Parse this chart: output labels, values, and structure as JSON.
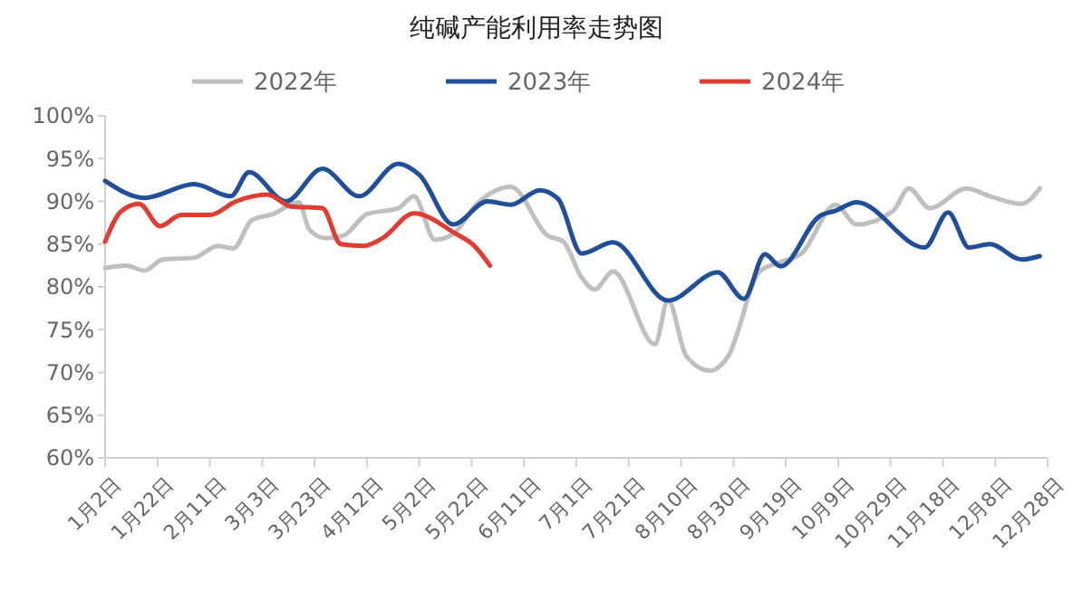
{
  "chart_data": {
    "type": "line",
    "title": "纯碱产能利用率走势图",
    "legend": "top",
    "grid": false,
    "marker": "none",
    "line_style": "solid",
    "xlim": [
      "--01-02",
      "--12-28"
    ],
    "xticks": [
      {
        "value": "--01-02",
        "label": "1月2日"
      },
      {
        "value": "--01-22",
        "label": "1月22日"
      },
      {
        "value": "--02-11",
        "label": "2月11日"
      },
      {
        "value": "--03-03",
        "label": "3月3日"
      },
      {
        "value": "--03-23",
        "label": "3月23日"
      },
      {
        "value": "--04-12",
        "label": "4月12日"
      },
      {
        "value": "--05-02",
        "label": "5月2日"
      },
      {
        "value": "--05-22",
        "label": "5月22日"
      },
      {
        "value": "--06-11",
        "label": "6月11日"
      },
      {
        "value": "--07-01",
        "label": "7月1日"
      },
      {
        "value": "--07-21",
        "label": "7月21日"
      },
      {
        "value": "--08-10",
        "label": "8月10日"
      },
      {
        "value": "--08-30",
        "label": "8月30日"
      },
      {
        "value": "--09-19",
        "label": "9月19日"
      },
      {
        "value": "--10-09",
        "label": "10月9日"
      },
      {
        "value": "--10-29",
        "label": "10月29日"
      },
      {
        "value": "--11-18",
        "label": "11月18日"
      },
      {
        "value": "--12-08",
        "label": "12月8日"
      },
      {
        "value": "--12-28",
        "label": "12月28日"
      }
    ],
    "ylim": [
      60,
      100
    ],
    "yticks": [
      {
        "value": 60,
        "label": "60%"
      },
      {
        "value": 65,
        "label": "65%"
      },
      {
        "value": 70,
        "label": "70%"
      },
      {
        "value": 75,
        "label": "75%"
      },
      {
        "value": 80,
        "label": "80%"
      },
      {
        "value": 85,
        "label": "85%"
      },
      {
        "value": 90,
        "label": "90%"
      },
      {
        "value": 95,
        "label": "95%"
      },
      {
        "value": 100,
        "label": "100%"
      }
    ],
    "series": [
      {
        "name": "2022年",
        "color": "#bfbfbf",
        "x": [
          "--01-02",
          "--01-10",
          "--01-17",
          "--01-24",
          "--02-05",
          "--02-14",
          "--02-20",
          "--02-27",
          "--03-07",
          "--03-17",
          "--03-21",
          "--03-27",
          "--04-03",
          "--04-12",
          "--04-24",
          "--04-30",
          "--05-08",
          "--05-15",
          "--05-24",
          "--06-06",
          "--06-20",
          "--06-26",
          "--07-03",
          "--07-08",
          "--07-15",
          "--07-31",
          "--08-05",
          "--08-12",
          "--08-21",
          "--08-28",
          "--09-09",
          "--09-17",
          "--09-25",
          "--10-08",
          "--10-16",
          "--10-30",
          "--11-05",
          "--11-13",
          "--11-27",
          "--12-06",
          "--12-18",
          "--12-25"
        ],
        "values": [
          82.2,
          82.5,
          81.9,
          83.2,
          83.4,
          84.8,
          84.5,
          87.8,
          88.5,
          89.9,
          86.7,
          85.7,
          86.0,
          88.5,
          89.2,
          90.6,
          85.5,
          86.2,
          89.7,
          91.7,
          86.0,
          85.3,
          81.1,
          79.7,
          81.8,
          73.3,
          78.4,
          71.9,
          70.2,
          71.9,
          81.8,
          82.9,
          83.9,
          89.6,
          87.3,
          88.9,
          91.5,
          89.2,
          91.5,
          90.6,
          89.7,
          91.5
        ]
      },
      {
        "name": "2023年",
        "color": "#1f4e9a",
        "x": [
          "--01-02",
          "--01-17",
          "--02-05",
          "--02-19",
          "--02-26",
          "--03-12",
          "--03-26",
          "--04-09",
          "--04-24",
          "--05-02",
          "--05-15",
          "--05-28",
          "--06-06",
          "--06-17",
          "--06-24",
          "--07-03",
          "--07-15",
          "--08-05",
          "--08-24",
          "--09-03",
          "--09-11",
          "--09-17",
          "--10-02",
          "--10-08",
          "--10-16",
          "--11-11",
          "--11-20",
          "--11-28",
          "--12-06",
          "--12-18",
          "--12-25"
        ],
        "values": [
          92.4,
          90.4,
          92.0,
          90.6,
          93.4,
          90.0,
          93.8,
          90.6,
          94.4,
          93.1,
          87.3,
          90.0,
          89.6,
          91.3,
          90.3,
          83.9,
          85.2,
          78.4,
          81.7,
          78.6,
          83.8,
          82.4,
          88.3,
          88.9,
          89.9,
          84.6,
          88.7,
          84.6,
          85.0,
          83.2,
          83.6
        ]
      },
      {
        "name": "2024年",
        "color": "#e03c31",
        "x": [
          "--01-02",
          "--01-08",
          "--01-15",
          "--01-23",
          "--01-31",
          "--02-11",
          "--02-21",
          "--03-05",
          "--03-14",
          "--03-26",
          "--04-02",
          "--04-11",
          "--04-18",
          "--04-30",
          "--05-16",
          "--05-23",
          "--05-29"
        ],
        "values": [
          85.3,
          88.8,
          89.7,
          87.1,
          88.4,
          88.4,
          90.0,
          90.8,
          89.4,
          89.2,
          85.0,
          84.8,
          85.7,
          88.6,
          86.2,
          84.8,
          82.5
        ]
      }
    ]
  }
}
